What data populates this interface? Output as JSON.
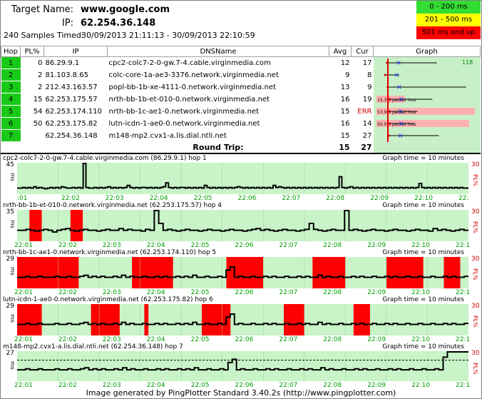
{
  "header": {
    "target_label": "Target Name:",
    "target_value": "www.google.com",
    "ip_label": "IP:",
    "ip_value": "62.254.36.148",
    "samples_label": "240 Samples Timed:",
    "samples_range": "30/09/2013 21:11:13 - 30/09/2013 22:10:59"
  },
  "legend": [
    {
      "label": "0 - 200 ms",
      "color": "#33dd33"
    },
    {
      "label": "201 - 500 ms",
      "color": "#ffff00"
    },
    {
      "label": "501 ms and up",
      "color": "#ff0000"
    }
  ],
  "columns": {
    "hop": "Hop",
    "pl": "PL%",
    "ip": "IP",
    "dns": "DNSName",
    "avg": "Avg",
    "cur": "Cur",
    "graph": "Graph"
  },
  "hops": [
    {
      "hop": "1",
      "pl": "0",
      "ip": "86.29.9.1",
      "dns": "cpc2-colc7-2-0-gw.7-4.cable.virginmedia.com",
      "avg": "12",
      "cur": "17",
      "graph_max": "118"
    },
    {
      "hop": "2",
      "pl": "2",
      "ip": "81.103.8.65",
      "dns": "colc-core-1a-ae3-3376.network.virginmedia.net",
      "avg": "9",
      "cur": "8"
    },
    {
      "hop": "3",
      "pl": "2",
      "ip": "212.43.163.57",
      "dns": "popl-bb-1b-xe-4111-0.network.virginmedia.net",
      "avg": "13",
      "cur": "9"
    },
    {
      "hop": "4",
      "pl": "15",
      "ip": "62.253.175.57",
      "dns": "nrth-bb-1b-et-010-0.network.virginmedia.net",
      "avg": "16",
      "cur": "19"
    },
    {
      "hop": "5",
      "pl": "54",
      "ip": "62.253.174.110",
      "dns": "nrth-bb-1c-ae1-0.network.virginmedia.net",
      "avg": "15",
      "cur": "ERR"
    },
    {
      "hop": "6",
      "pl": "50",
      "ip": "62.253.175.82",
      "dns": "lutn-icdn-1-ae0-0.network.virginmedia.net",
      "avg": "16",
      "cur": "14"
    },
    {
      "hop": "7",
      "pl": "",
      "ip": "62.254.36.148",
      "dns": "m148-mp2.cvx1-a.lis.dial.ntli.net",
      "avg": "15",
      "cur": "27"
    }
  ],
  "round_trip": {
    "label": "Round Trip:",
    "avg": "15",
    "cur": "27"
  },
  "graph_loss_label": "packet loss",
  "panels": [
    {
      "title": "cpc2-colc7-2-0-gw.7-4.cable.virginmedia.com (86.29.9.1) hop 1",
      "graph_time": "Graph time = 10 minutes",
      "ymax": "45",
      "ymid": "",
      "pct": "30",
      "loss": [],
      "latency": [
        8,
        8,
        9,
        8,
        9,
        8,
        10,
        8,
        9,
        8,
        7,
        8,
        9,
        8,
        9,
        8,
        10,
        9,
        8,
        8,
        9,
        8,
        9,
        8,
        45,
        9,
        8,
        8,
        9,
        8,
        9,
        8,
        9,
        10,
        8,
        9,
        8,
        9,
        8,
        9,
        12,
        9,
        8,
        9,
        8,
        9,
        9,
        8,
        9,
        8,
        9,
        8,
        9,
        10,
        16,
        9,
        8,
        9,
        8,
        9,
        9,
        8,
        9,
        8,
        9,
        8,
        9,
        8,
        12,
        9,
        8,
        9,
        8,
        9,
        8,
        9,
        8,
        9,
        8,
        9,
        10,
        9,
        8,
        9,
        8,
        9,
        8,
        9,
        8,
        9,
        8,
        9,
        8,
        12,
        9,
        10,
        9,
        8,
        9,
        8,
        9,
        8,
        9,
        8,
        9,
        8,
        9,
        8,
        9,
        8,
        9,
        8,
        9,
        8,
        9,
        8,
        9,
        25,
        9,
        8,
        9,
        10,
        8,
        9,
        8,
        9,
        8,
        9,
        8,
        9,
        8,
        9,
        8,
        9,
        8,
        9,
        8,
        9,
        8,
        9,
        8,
        9,
        8,
        9,
        8,
        9,
        15,
        9,
        8,
        9,
        8,
        9,
        8,
        9,
        8,
        9,
        8,
        9,
        8,
        9,
        8,
        9,
        8,
        8
      ]
    },
    {
      "title": "nrth-bb-1b-et-010-0.network.virginmedia.net (62.253.175.57) hop 4",
      "graph_time": "Graph time = 10 minutes",
      "ymax": "35",
      "ymid": "",
      "pct": "30",
      "loss": [
        [
          3,
          6
        ],
        [
          13,
          16
        ]
      ],
      "latency": [
        12,
        12,
        13,
        12,
        11,
        12,
        13,
        12,
        10,
        12,
        13,
        14,
        12,
        11,
        12,
        13,
        12,
        12,
        11,
        12,
        13,
        12,
        12,
        14,
        12,
        13,
        12,
        12,
        11,
        13,
        12,
        35,
        20,
        12,
        13,
        12,
        11,
        12,
        13,
        12,
        12,
        11,
        12,
        13,
        12,
        12,
        11,
        12,
        13,
        12,
        12,
        11,
        12,
        13,
        14,
        12,
        13,
        12,
        11,
        12,
        13,
        12,
        12,
        11,
        12,
        13,
        20,
        13,
        12,
        11,
        12,
        13,
        12,
        12,
        35,
        12,
        13,
        12,
        11,
        12,
        13,
        12,
        12,
        11,
        12,
        13,
        12,
        12,
        11,
        12,
        13,
        12,
        12,
        11,
        14,
        12,
        13,
        12,
        11,
        12,
        13,
        12
      ]
    },
    {
      "title": "nrth-bb-1c-ae1-0.network.virginmedia.net (62.253.174.110) hop 5",
      "graph_time": "Graph time = 10 minutes",
      "ymax": "29",
      "ymid": "",
      "pct": "30",
      "loss": [
        [
          0,
          15
        ],
        [
          28,
          38
        ],
        [
          51,
          60
        ],
        [
          72,
          80
        ],
        [
          90,
          99
        ],
        [
          104,
          108
        ]
      ],
      "latency": [
        10,
        10,
        11,
        10,
        10,
        11,
        10,
        10,
        10,
        11,
        10,
        10,
        11,
        10,
        10,
        11,
        12,
        10,
        11,
        10,
        11,
        10,
        10,
        11,
        10,
        12,
        10,
        11,
        10,
        10,
        11,
        10,
        10,
        11,
        10,
        11,
        10,
        10,
        11,
        10,
        11,
        10,
        12,
        10,
        10,
        11,
        10,
        10,
        11,
        10,
        17,
        20,
        10,
        11,
        10,
        10,
        11,
        10,
        10,
        11,
        10,
        11,
        10,
        10,
        11,
        10,
        10,
        11,
        10,
        11,
        10,
        10,
        12,
        10,
        11,
        10,
        10,
        11,
        10,
        10,
        11,
        10,
        11,
        10,
        10,
        11,
        10,
        10,
        11,
        10,
        11,
        10,
        10,
        11,
        10,
        10,
        11,
        10,
        10,
        11,
        10,
        10,
        11,
        10,
        11,
        10,
        10,
        11
      ]
    },
    {
      "title": "lutn-icdn-1-ae0-0.network.virginmedia.net (62.253.175.82) hop 6",
      "graph_time": "Graph time = 10 minutes",
      "ymax": "29",
      "ymid": "",
      "pct": "30",
      "loss": [
        [
          0,
          6
        ],
        [
          18,
          25
        ],
        [
          31,
          32
        ],
        [
          45,
          52
        ],
        [
          65,
          70
        ],
        [
          82,
          86
        ]
      ],
      "latency": [
        10,
        10,
        11,
        10,
        10,
        11,
        10,
        10,
        10,
        11,
        10,
        10,
        11,
        10,
        10,
        11,
        12,
        10,
        11,
        10,
        11,
        10,
        10,
        11,
        10,
        12,
        10,
        11,
        10,
        10,
        11,
        10,
        10,
        11,
        10,
        11,
        10,
        10,
        11,
        10,
        11,
        10,
        12,
        10,
        10,
        11,
        10,
        10,
        11,
        10,
        17,
        20,
        10,
        11,
        10,
        10,
        11,
        10,
        10,
        11,
        10,
        11,
        10,
        10,
        11,
        10,
        10,
        11,
        10,
        11,
        10,
        10,
        12,
        10,
        11,
        10,
        10,
        11,
        10,
        10,
        11,
        10,
        11,
        10,
        10,
        11,
        10,
        10,
        11,
        10,
        11,
        10,
        10,
        11,
        10,
        10,
        11,
        10,
        10,
        11,
        10,
        10,
        11,
        10,
        11,
        10,
        10,
        11
      ]
    },
    {
      "title": "m148-mp2.cvx1-a.lis.dial.ntli.net (62.254.36.148) hop 7",
      "graph_time": "Graph time = 10 minutes",
      "ymax": "27",
      "ymid": "20",
      "pct": "30",
      "loss": [],
      "latency": [
        10,
        10,
        11,
        10,
        10,
        11,
        10,
        10,
        10,
        11,
        10,
        10,
        11,
        10,
        10,
        11,
        12,
        10,
        11,
        10,
        11,
        10,
        10,
        11,
        10,
        12,
        10,
        11,
        10,
        10,
        11,
        10,
        10,
        11,
        10,
        11,
        10,
        10,
        11,
        10,
        11,
        10,
        12,
        10,
        10,
        11,
        10,
        10,
        11,
        10,
        17,
        20,
        10,
        11,
        10,
        10,
        11,
        10,
        10,
        11,
        10,
        11,
        10,
        10,
        11,
        10,
        10,
        11,
        10,
        11,
        10,
        10,
        12,
        10,
        11,
        10,
        10,
        11,
        10,
        10,
        11,
        10,
        11,
        10,
        10,
        11,
        10,
        10,
        11,
        10,
        11,
        10,
        10,
        11,
        10,
        10,
        11,
        10,
        10,
        11,
        10,
        22,
        27,
        27,
        27,
        27,
        27
      ]
    }
  ],
  "time_ticks": [
    "22:01",
    "22:02",
    "22:03",
    "22:04",
    "22:05",
    "22:06",
    "22:07",
    "22:08",
    "22:09",
    "22:10",
    "22:1"
  ],
  "ticks_hop1": [
    ":01",
    "22:02",
    "22:03",
    "22:04",
    "22:05",
    "22:06",
    "22:07",
    "22:08",
    "22:09",
    "22:10",
    "22:"
  ],
  "footer": "Image generated by PingPlotter Standard 3.40.2s (http://www.pingplotter.com)"
}
